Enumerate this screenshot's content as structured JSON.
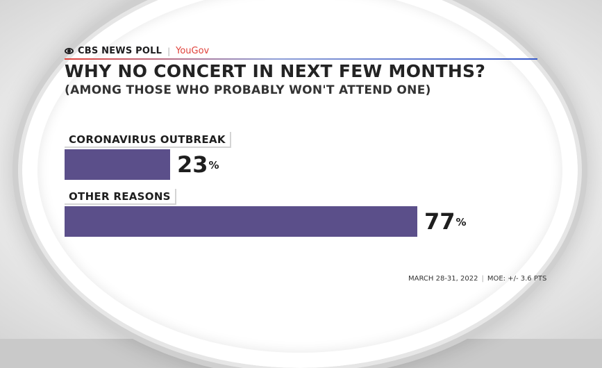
{
  "header": {
    "brand": "CBS NEWS POLL",
    "separator": "|",
    "partner": "YouGov"
  },
  "colors": {
    "bar": "#5b4f8a",
    "partner_red": "#e0413a",
    "rule_blue": "#3557c7"
  },
  "chart_data": {
    "type": "bar",
    "orientation": "horizontal",
    "title": "WHY NO CONCERT IN NEXT FEW MONTHS?",
    "subtitle": "(AMONG THOSE WHO PROBABLY WON'T ATTEND ONE)",
    "categories": [
      "CORONAVIRUS OUTBREAK",
      "OTHER REASONS"
    ],
    "values": [
      23,
      77
    ],
    "value_labels": [
      "23",
      "77"
    ],
    "unit": "%",
    "xlim": [
      0,
      100
    ],
    "grid": false
  },
  "footer": {
    "date": "MARCH 28-31, 2022",
    "separator": "|",
    "moe": "MOE: +/- 3.6 PTS"
  }
}
